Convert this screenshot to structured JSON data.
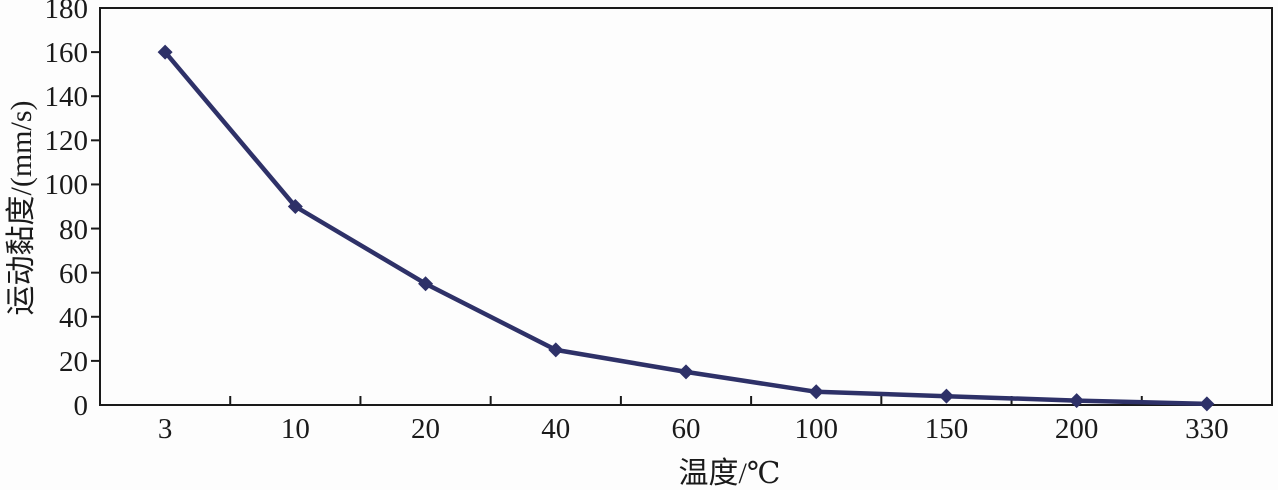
{
  "chart_data": {
    "type": "line",
    "title": "",
    "xlabel": "温度/℃",
    "ylabel": "运动黏度/(mm/s)",
    "categories": [
      "3",
      "10",
      "20",
      "40",
      "60",
      "100",
      "150",
      "200",
      "330"
    ],
    "series": [
      {
        "name": "运动黏度",
        "values": [
          160,
          90,
          55,
          25,
          15,
          6,
          4,
          2,
          0.5
        ],
        "color": "#2e3168",
        "marker": "diamond"
      }
    ],
    "ylim": [
      0,
      180
    ],
    "yticks": [
      0,
      20,
      40,
      60,
      80,
      100,
      120,
      140,
      160,
      180
    ],
    "grid": false,
    "legend": "none",
    "axis_color": "#1a1a1a",
    "background_color": "#fdfdfd"
  }
}
